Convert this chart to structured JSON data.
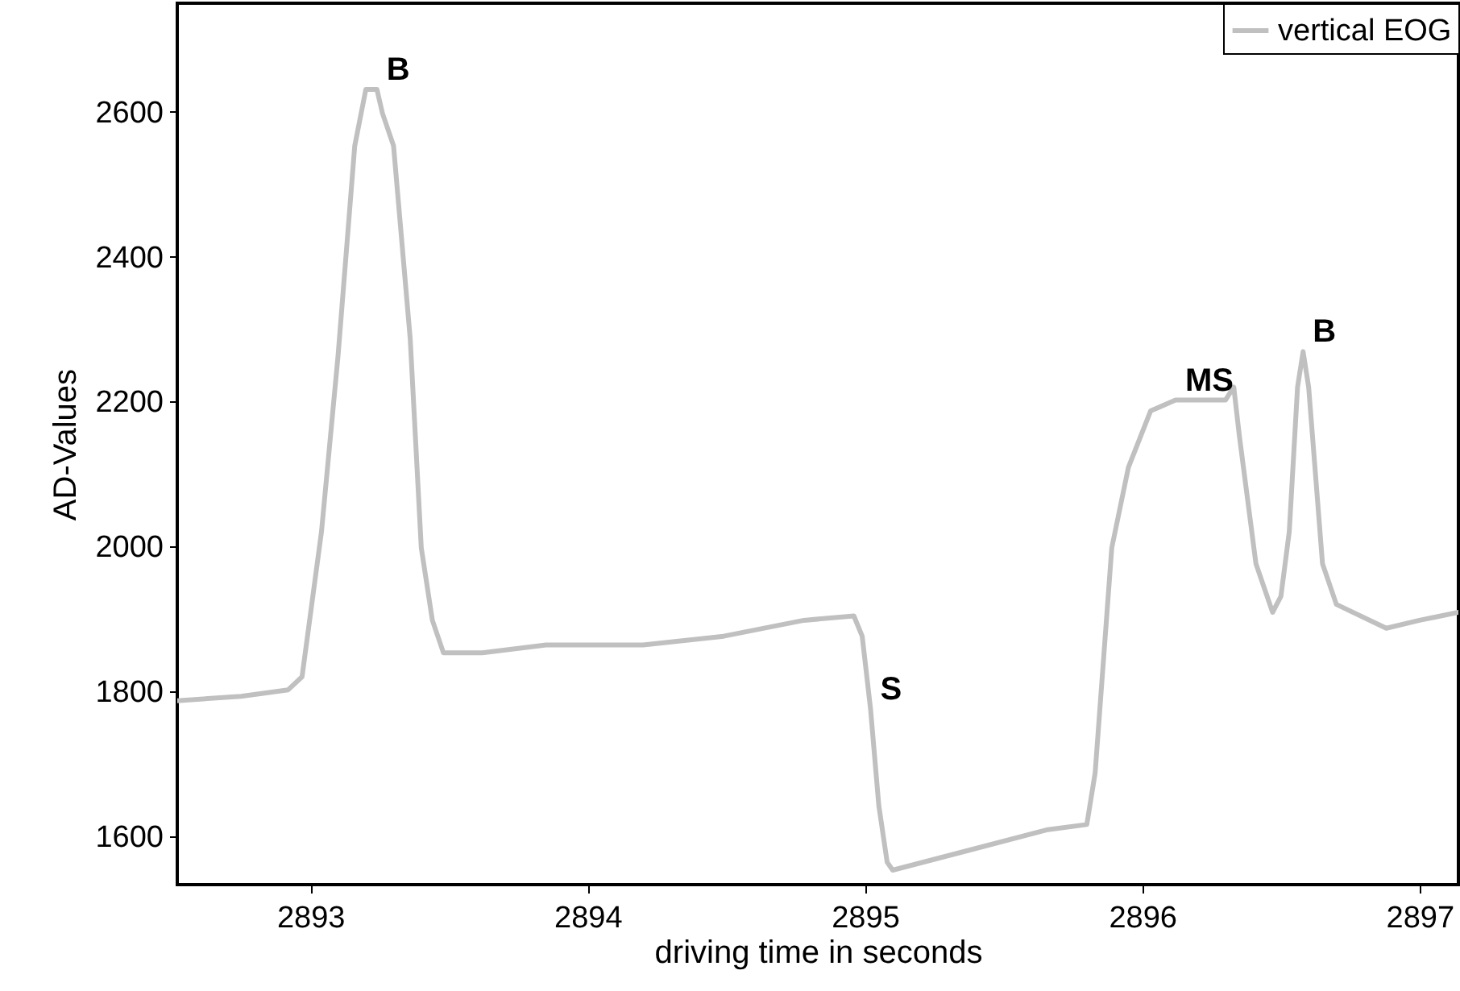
{
  "chart_data": {
    "type": "line",
    "xlabel": "driving time in seconds",
    "ylabel": "AD-Values",
    "x": [
      2892.52,
      2892.75,
      2892.92,
      2892.97,
      2893.04,
      2893.1,
      2893.16,
      2893.2,
      2893.24,
      2893.26,
      2893.3,
      2893.36,
      2893.4,
      2893.44,
      2893.48,
      2893.62,
      2893.85,
      2894.2,
      2894.49,
      2894.78,
      2894.96,
      2894.99,
      2895.02,
      2895.05,
      2895.08,
      2895.1,
      2895.37,
      2895.66,
      2895.8,
      2895.83,
      2895.89,
      2895.95,
      2896.03,
      2896.12,
      2896.3,
      2896.33,
      2896.35,
      2896.41,
      2896.47,
      2896.5,
      2896.53,
      2896.56,
      2896.58,
      2896.6,
      2896.65,
      2896.7,
      2896.88,
      2897.0,
      2897.14
    ],
    "series": [
      {
        "name": "vertical EOG",
        "color": "#c0c0c0",
        "values": [
          1787,
          1793,
          1802,
          1820,
          2020,
          2264,
          2553,
          2631,
          2631,
          2598,
          2553,
          2287,
          1998,
          1898,
          1853,
          1853,
          1864,
          1864,
          1876,
          1898,
          1904,
          1876,
          1776,
          1642,
          1564,
          1553,
          1580,
          1609,
          1616,
          1687,
          1998,
          2109,
          2187,
          2202,
          2202,
          2220,
          2153,
          1976,
          1909,
          1931,
          2020,
          2220,
          2269,
          2220,
          1976,
          1920,
          1887,
          1898,
          1909
        ]
      }
    ],
    "xlim": [
      2892.52,
      2897.14
    ],
    "xticks": [
      2893,
      2894,
      2895,
      2896,
      2897
    ],
    "ylim": [
      1533,
      2750
    ],
    "yticks": [
      1600,
      1800,
      2000,
      2200,
      2400,
      2600
    ],
    "annotations": [
      {
        "text": "B",
        "x": 2893.24,
        "y": 2631
      },
      {
        "text": "S",
        "x": 2895.02,
        "y": 1776
      },
      {
        "text": "MS",
        "x": 2896.12,
        "y": 2202
      },
      {
        "text": "B",
        "x": 2896.58,
        "y": 2269
      }
    ],
    "legend": "top right",
    "grid": false,
    "marker": "none",
    "line_style": "solid"
  }
}
